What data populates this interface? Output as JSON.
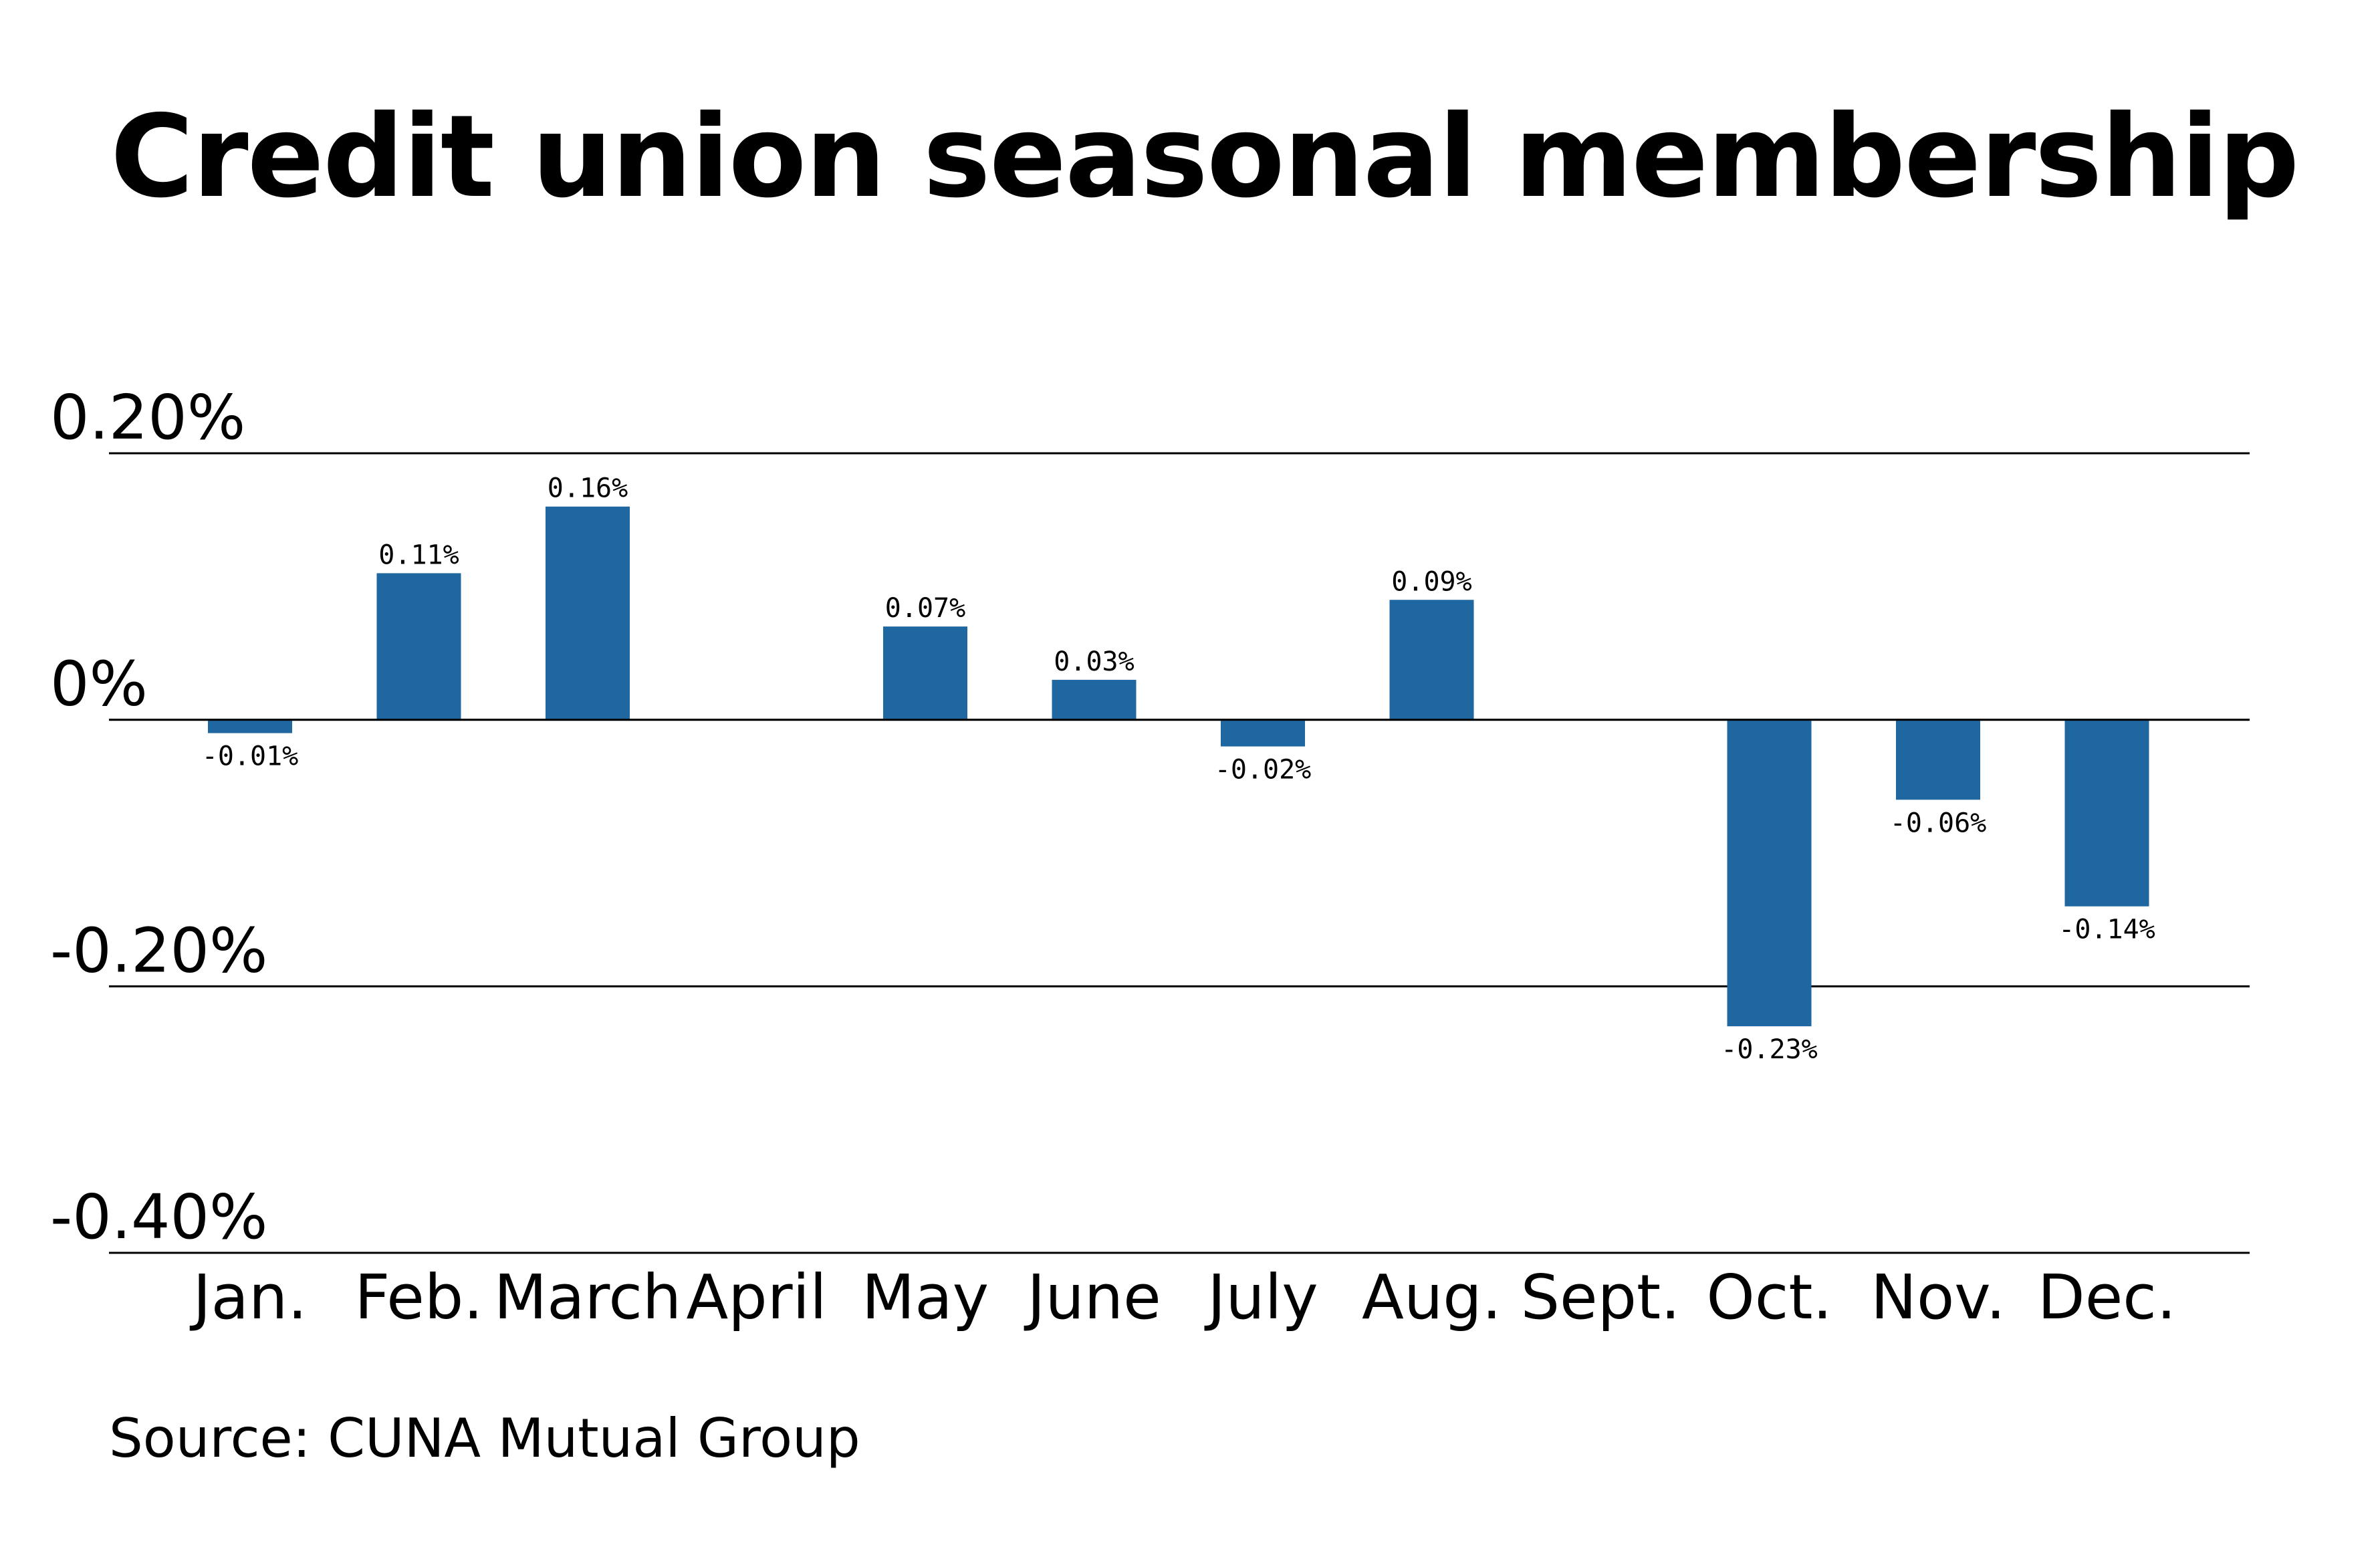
{
  "chart_data": {
    "type": "bar",
    "title": "Credit union seasonal membership",
    "source": "Source: CUNA Mutual Group",
    "categories": [
      "Jan.",
      "Feb.",
      "March",
      "April",
      "May",
      "June",
      "July",
      "Aug.",
      "Sept.",
      "Oct.",
      "Nov.",
      "Dec."
    ],
    "values": [
      -0.01,
      0.11,
      0.16,
      null,
      0.07,
      0.03,
      -0.02,
      0.09,
      null,
      -0.23,
      -0.06,
      -0.14
    ],
    "value_labels": [
      "-0.01%",
      "0.11%",
      "0.16%",
      "",
      "0.07%",
      "0.03%",
      "-0.02%",
      "0.09%",
      "",
      "-0.23%",
      "-0.06%",
      "-0.14%"
    ],
    "y_ticks": [
      0.2,
      0,
      -0.2,
      -0.4
    ],
    "y_tick_labels": [
      "0.20%",
      "0%",
      "-0.20%",
      "-0.40%"
    ],
    "ylim": [
      -0.4,
      0.2
    ],
    "bar_color": "#1f67a0",
    "grid": true,
    "legend": "none"
  }
}
